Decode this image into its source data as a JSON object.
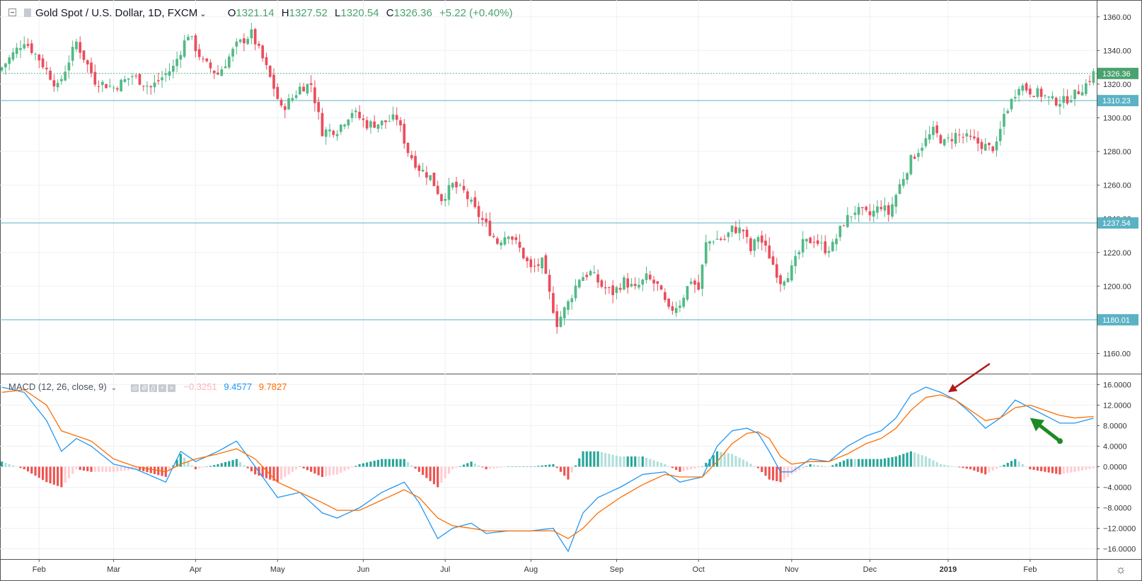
{
  "header": {
    "symbol": "Gold Spot / U.S. Dollar, 1D, FXCM",
    "open_label": "O",
    "open": "1321.14",
    "high_label": "H",
    "high": "1327.52",
    "low_label": "L",
    "low": "1320.54",
    "close_label": "C",
    "close": "1326.36",
    "change": "+5.22 (+0.40%)"
  },
  "macd_legend": {
    "title": "MACD (12, 26, close, 9)",
    "hist_value": "−0.3251",
    "macd_value": "9.4577",
    "signal_value": "9.7827"
  },
  "colors": {
    "up": "#53b987",
    "down": "#eb4d5c",
    "macd": "#2196f3",
    "signal": "#ff6d00",
    "hist_up_strong": "#26a69a",
    "hist_up_weak": "#b2dfdb",
    "hist_down_strong": "#ef5350",
    "hist_down_weak": "#ffcdd2",
    "hline": "#5bb2c4",
    "annotation_red": "#b01a1a",
    "annotation_green": "#1e8a24"
  },
  "chart_data": [
    {
      "type": "candlestick",
      "title": "Gold Spot / U.S. Dollar, 1D, FXCM",
      "ylim": [
        1148,
        1370
      ],
      "y_ticks": [
        "1360.00",
        "1340.00",
        "1320.00",
        "1300.00",
        "1280.00",
        "1260.00",
        "1240.00",
        "1220.00",
        "1200.00",
        "1180.00",
        "1160.00"
      ],
      "x_ticks": [
        "Feb",
        "Mar",
        "Apr",
        "May",
        "Jun",
        "Jul",
        "Aug",
        "Sep",
        "Oct",
        "Nov",
        "Dec",
        "2019",
        "Feb"
      ],
      "x_tick_positions": [
        10,
        30,
        52,
        74,
        97,
        119,
        142,
        165,
        187,
        212,
        233,
        254,
        276
      ],
      "horizontal_lines": [
        {
          "label": "1310.23",
          "value": 1310.23
        },
        {
          "label": "1237.54",
          "value": 1237.54
        },
        {
          "label": "1180.01",
          "value": 1180.01
        }
      ],
      "last_price": {
        "label": "1326.36",
        "value": 1326.36
      },
      "total_bars": 294,
      "close_keypoints": [
        [
          0,
          1330
        ],
        [
          6,
          1346
        ],
        [
          10,
          1335
        ],
        [
          15,
          1318
        ],
        [
          20,
          1345
        ],
        [
          25,
          1322
        ],
        [
          30,
          1318
        ],
        [
          35,
          1325
        ],
        [
          40,
          1318
        ],
        [
          46,
          1330
        ],
        [
          50,
          1350
        ],
        [
          54,
          1333
        ],
        [
          58,
          1326
        ],
        [
          63,
          1343
        ],
        [
          67,
          1350
        ],
        [
          70,
          1335
        ],
        [
          73,
          1318
        ],
        [
          75,
          1305
        ],
        [
          78,
          1312
        ],
        [
          80,
          1318
        ],
        [
          83,
          1320
        ],
        [
          86,
          1292
        ],
        [
          90,
          1293
        ],
        [
          94,
          1304
        ],
        [
          98,
          1296
        ],
        [
          102,
          1297
        ],
        [
          106,
          1300
        ],
        [
          109,
          1280
        ],
        [
          112,
          1270
        ],
        [
          115,
          1265
        ],
        [
          118,
          1252
        ],
        [
          121,
          1260
        ],
        [
          124,
          1256
        ],
        [
          127,
          1245
        ],
        [
          130,
          1236
        ],
        [
          133,
          1226
        ],
        [
          136,
          1232
        ],
        [
          139,
          1222
        ],
        [
          142,
          1210
        ],
        [
          145,
          1214
        ],
        [
          147,
          1195
        ],
        [
          149,
          1178
        ],
        [
          152,
          1190
        ],
        [
          155,
          1205
        ],
        [
          158,
          1208
        ],
        [
          161,
          1200
        ],
        [
          164,
          1196
        ],
        [
          167,
          1203
        ],
        [
          170,
          1198
        ],
        [
          173,
          1205
        ],
        [
          176,
          1200
        ],
        [
          179,
          1185
        ],
        [
          182,
          1190
        ],
        [
          185,
          1204
        ],
        [
          187,
          1198
        ],
        [
          189,
          1225
        ],
        [
          191,
          1228
        ],
        [
          194,
          1228
        ],
        [
          196,
          1234
        ],
        [
          199,
          1233
        ],
        [
          201,
          1221
        ],
        [
          203,
          1230
        ],
        [
          206,
          1218
        ],
        [
          209,
          1203
        ],
        [
          212,
          1210
        ],
        [
          215,
          1225
        ],
        [
          218,
          1228
        ],
        [
          221,
          1222
        ],
        [
          223,
          1224
        ],
        [
          226,
          1238
        ],
        [
          229,
          1245
        ],
        [
          233,
          1242
        ],
        [
          236,
          1248
        ],
        [
          238,
          1243
        ],
        [
          241,
          1260
        ],
        [
          244,
          1275
        ],
        [
          247,
          1284
        ],
        [
          250,
          1292
        ],
        [
          253,
          1285
        ],
        [
          256,
          1290
        ],
        [
          259,
          1288
        ],
        [
          262,
          1285
        ],
        [
          265,
          1282
        ],
        [
          267,
          1283
        ],
        [
          269,
          1302
        ],
        [
          271,
          1310
        ],
        [
          273,
          1320
        ],
        [
          276,
          1316
        ],
        [
          279,
          1314
        ],
        [
          282,
          1310
        ],
        [
          285,
          1310
        ],
        [
          288,
          1314
        ],
        [
          291,
          1320
        ],
        [
          293,
          1326.36
        ]
      ]
    },
    {
      "type": "line",
      "title": "MACD (12, 26, close, 9)",
      "ylim": [
        -18,
        18
      ],
      "y_ticks": [
        "16.0000",
        "12.0000",
        "8.0000",
        "4.0000",
        "0.0000",
        "−4.0000",
        "−8.0000",
        "−12.0000",
        "−16.0000"
      ],
      "series": [
        {
          "name": "MACD",
          "color": "#2196f3",
          "points": [
            [
              0,
              15.5
            ],
            [
              6,
              14.5
            ],
            [
              12,
              9
            ],
            [
              16,
              3
            ],
            [
              20,
              5.5
            ],
            [
              24,
              4
            ],
            [
              30,
              0.5
            ],
            [
              36,
              -0.5
            ],
            [
              44,
              -3
            ],
            [
              48,
              3
            ],
            [
              52,
              1
            ],
            [
              58,
              3
            ],
            [
              63,
              5
            ],
            [
              68,
              0
            ],
            [
              74,
              -6
            ],
            [
              80,
              -5
            ],
            [
              86,
              -9
            ],
            [
              90,
              -10
            ],
            [
              96,
              -8
            ],
            [
              102,
              -5
            ],
            [
              108,
              -3
            ],
            [
              112,
              -7
            ],
            [
              117,
              -14
            ],
            [
              121,
              -12
            ],
            [
              126,
              -11
            ],
            [
              130,
              -13
            ],
            [
              136,
              -12.5
            ],
            [
              142,
              -12.5
            ],
            [
              148,
              -12
            ],
            [
              152,
              -16.5
            ],
            [
              156,
              -9
            ],
            [
              160,
              -6
            ],
            [
              166,
              -4
            ],
            [
              172,
              -1.5
            ],
            [
              178,
              -1
            ],
            [
              182,
              -3
            ],
            [
              188,
              -2
            ],
            [
              192,
              4
            ],
            [
              196,
              7
            ],
            [
              200,
              7.5
            ],
            [
              203,
              6.5
            ],
            [
              206,
              3
            ],
            [
              209,
              -1
            ],
            [
              212,
              -1
            ],
            [
              217,
              1.5
            ],
            [
              222,
              1
            ],
            [
              227,
              4
            ],
            [
              232,
              6
            ],
            [
              236,
              7
            ],
            [
              240,
              9.5
            ],
            [
              244,
              14
            ],
            [
              248,
              15.5
            ],
            [
              252,
              14.5
            ],
            [
              256,
              13
            ],
            [
              260,
              10.5
            ],
            [
              264,
              7.5
            ],
            [
              268,
              9.5
            ],
            [
              272,
              13
            ],
            [
              276,
              11.5
            ],
            [
              280,
              10
            ],
            [
              284,
              8.5
            ],
            [
              288,
              8.5
            ],
            [
              293,
              9.46
            ]
          ]
        },
        {
          "name": "Signal",
          "color": "#ff6d00",
          "points": [
            [
              0,
              14.5
            ],
            [
              6,
              15
            ],
            [
              12,
              12
            ],
            [
              16,
              7
            ],
            [
              20,
              6
            ],
            [
              24,
              5
            ],
            [
              30,
              1.5
            ],
            [
              36,
              0
            ],
            [
              44,
              -1
            ],
            [
              48,
              0.5
            ],
            [
              52,
              1.5
            ],
            [
              58,
              2.5
            ],
            [
              63,
              3.5
            ],
            [
              68,
              1.5
            ],
            [
              74,
              -3
            ],
            [
              80,
              -5
            ],
            [
              86,
              -7
            ],
            [
              90,
              -8.5
            ],
            [
              96,
              -8.5
            ],
            [
              102,
              -6.5
            ],
            [
              108,
              -4.5
            ],
            [
              112,
              -6
            ],
            [
              117,
              -10
            ],
            [
              121,
              -11.5
            ],
            [
              126,
              -12
            ],
            [
              130,
              -12.5
            ],
            [
              136,
              -12.5
            ],
            [
              142,
              -12.5
            ],
            [
              148,
              -12.5
            ],
            [
              152,
              -14
            ],
            [
              156,
              -12
            ],
            [
              160,
              -9
            ],
            [
              166,
              -6
            ],
            [
              172,
              -3.5
            ],
            [
              178,
              -1.5
            ],
            [
              182,
              -2
            ],
            [
              188,
              -2
            ],
            [
              192,
              1
            ],
            [
              196,
              4.5
            ],
            [
              200,
              6.5
            ],
            [
              203,
              6.8
            ],
            [
              206,
              5.5
            ],
            [
              209,
              2
            ],
            [
              212,
              0.5
            ],
            [
              217,
              1
            ],
            [
              222,
              1
            ],
            [
              227,
              2.5
            ],
            [
              232,
              4.5
            ],
            [
              236,
              5.5
            ],
            [
              240,
              7.5
            ],
            [
              244,
              11
            ],
            [
              248,
              13.5
            ],
            [
              252,
              14
            ],
            [
              256,
              13
            ],
            [
              260,
              11
            ],
            [
              264,
              9
            ],
            [
              268,
              9.5
            ],
            [
              272,
              11.5
            ],
            [
              276,
              12
            ],
            [
              280,
              11
            ],
            [
              284,
              10
            ],
            [
              288,
              9.5
            ],
            [
              293,
              9.78
            ]
          ]
        }
      ],
      "annotations": [
        {
          "type": "arrow",
          "color": "red",
          "from_bar": 265,
          "from_value": 20,
          "to_bar": 254,
          "to_value": 14.5
        },
        {
          "type": "arrow",
          "color": "green",
          "from_bar": 284,
          "from_value": 5,
          "to_bar": 276,
          "to_value": 9.5
        }
      ]
    }
  ]
}
